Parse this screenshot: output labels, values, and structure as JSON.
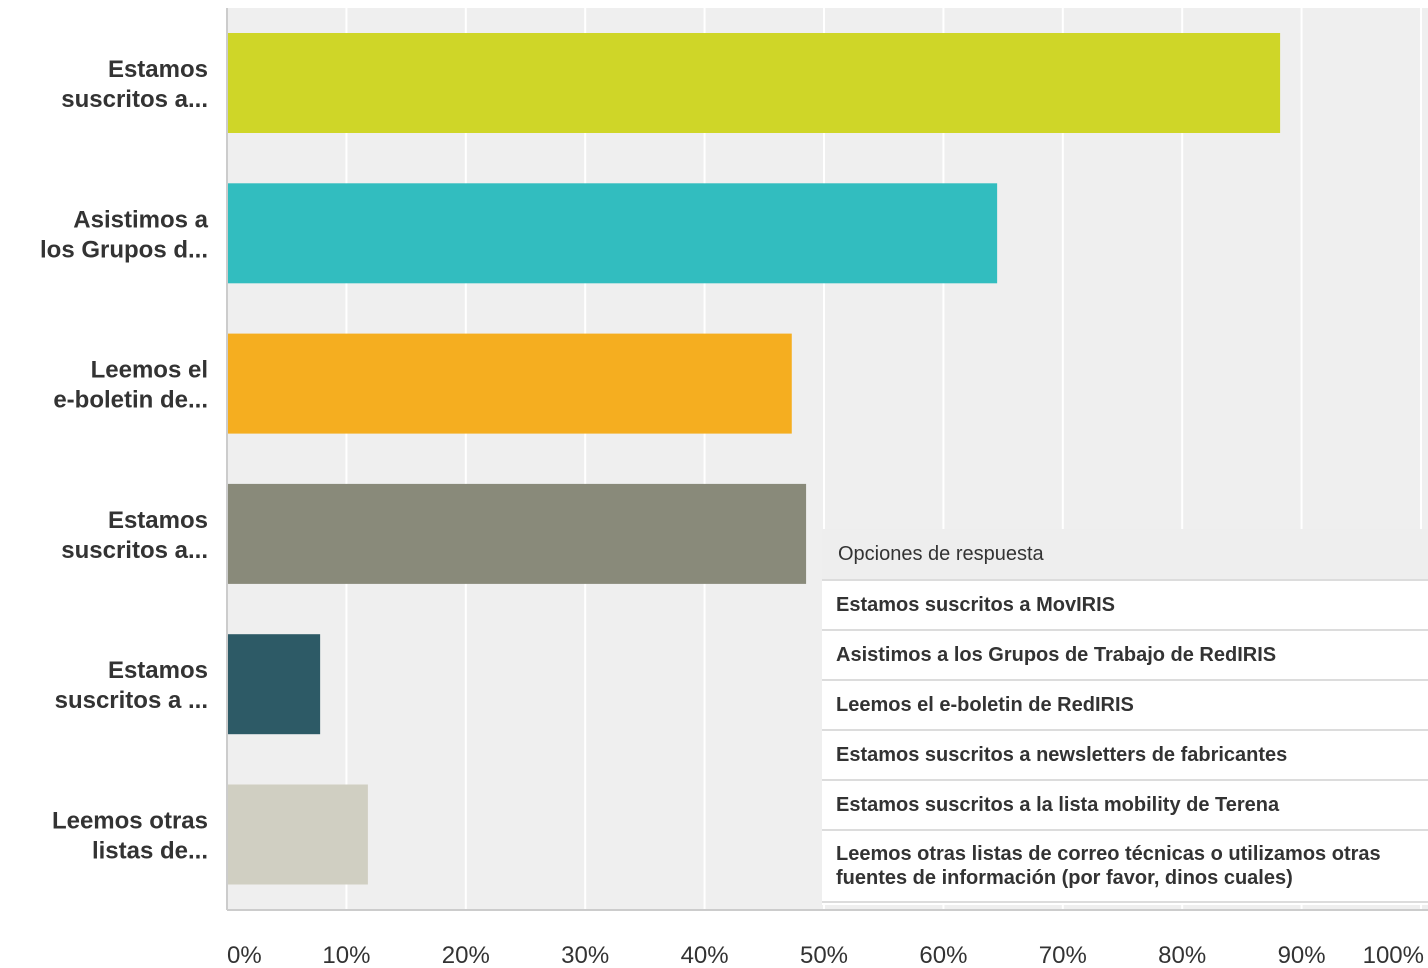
{
  "chart_data": {
    "type": "bar",
    "orientation": "horizontal",
    "categories": [
      "Estamos suscritos a...",
      "Asistimos a los Grupos d...",
      "Leemos el e-boletin de...",
      "Estamos suscritos a...",
      "Estamos suscritos a ...",
      "Leemos otras listas de..."
    ],
    "category_lines": [
      [
        "Estamos",
        "suscritos a..."
      ],
      [
        "Asistimos a",
        "los Grupos d..."
      ],
      [
        "Leemos el",
        "e-boletin de..."
      ],
      [
        "Estamos",
        "suscritos a..."
      ],
      [
        "Estamos",
        "suscritos a ..."
      ],
      [
        "Leemos otras",
        "listas de..."
      ]
    ],
    "values": [
      88.2,
      64.5,
      47.3,
      48.5,
      7.8,
      11.8
    ],
    "colors": [
      "#cfd628",
      "#32bdbf",
      "#f5ae20",
      "#898a7a",
      "#2d5a66",
      "#d0cfc2"
    ],
    "xlim": [
      0,
      100
    ],
    "xticks": [
      "0%",
      "10%",
      "20%",
      "30%",
      "40%",
      "50%",
      "60%",
      "70%",
      "80%",
      "90%",
      "100%"
    ],
    "grid": true,
    "title": "",
    "xlabel": "",
    "ylabel": ""
  },
  "answer_table": {
    "header": "Opciones de respuesta",
    "rows": [
      "Estamos suscritos a MovIRIS",
      "Asistimos a los Grupos de Trabajo de RedIRIS",
      "Leemos el e-boletin de RedIRIS",
      "Estamos suscritos a newsletters de fabricantes",
      "Estamos suscritos a la lista mobility de Terena",
      "Leemos otras listas de correo técnicas o utilizamos otras fuentes de información (por favor, dinos cuales)"
    ]
  }
}
